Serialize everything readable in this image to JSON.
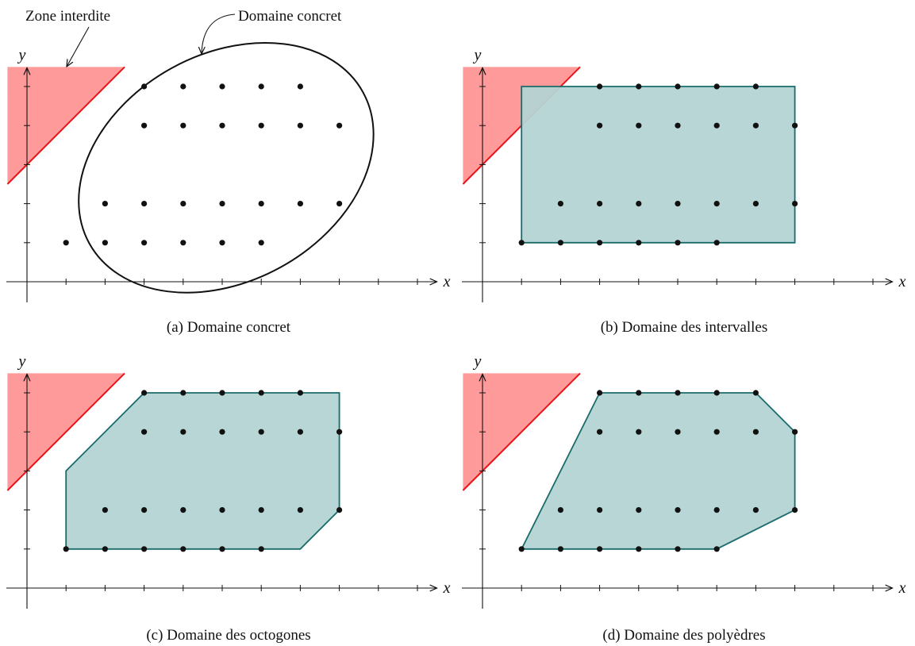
{
  "colors": {
    "forbidden_fill": "#ff9a9a",
    "forbidden_edge": "#e8151b",
    "domain_fill": "#b4d4d3",
    "domain_edge": "#1a6b6b",
    "point": "#111111",
    "axis": "#111111"
  },
  "annotations": {
    "forbidden_zone": "Zone interdite",
    "concrete_domain": "Domaine concret"
  },
  "points": [
    [
      3,
      5
    ],
    [
      4,
      5
    ],
    [
      5,
      5
    ],
    [
      6,
      5
    ],
    [
      7,
      5
    ],
    [
      3,
      4
    ],
    [
      4,
      4
    ],
    [
      5,
      4
    ],
    [
      6,
      4
    ],
    [
      7,
      4
    ],
    [
      8,
      4
    ],
    [
      2,
      2
    ],
    [
      3,
      2
    ],
    [
      4,
      2
    ],
    [
      5,
      2
    ],
    [
      6,
      2
    ],
    [
      7,
      2
    ],
    [
      8,
      2
    ],
    [
      1,
      1
    ],
    [
      2,
      1
    ],
    [
      3,
      1
    ],
    [
      4,
      1
    ],
    [
      5,
      1
    ],
    [
      6,
      1
    ]
  ],
  "forbidden_zone": [
    [
      -0.5,
      5.5
    ],
    [
      2.5,
      5.5
    ],
    [
      -0.5,
      2.5
    ]
  ],
  "panels": [
    {
      "id": "a",
      "caption": "(a) Domaine concret",
      "x_label": "x",
      "y_label": "y",
      "shape": "ellipse",
      "points": [
        [
          3,
          5
        ],
        [
          4,
          5
        ],
        [
          5,
          5
        ],
        [
          6,
          5
        ],
        [
          7,
          5
        ],
        [
          3,
          4
        ],
        [
          4,
          4
        ],
        [
          5,
          4
        ],
        [
          6,
          4
        ],
        [
          7,
          4
        ],
        [
          8,
          4
        ],
        [
          2,
          2
        ],
        [
          3,
          2
        ],
        [
          4,
          2
        ],
        [
          5,
          2
        ],
        [
          6,
          2
        ],
        [
          7,
          2
        ],
        [
          8,
          2
        ],
        [
          1,
          1
        ],
        [
          2,
          1
        ],
        [
          3,
          1
        ],
        [
          4,
          1
        ],
        [
          5,
          1
        ],
        [
          6,
          1
        ]
      ]
    },
    {
      "id": "b",
      "caption": "(b) Domaine des intervalles",
      "x_label": "x",
      "y_label": "y",
      "shape": "polygon",
      "polygon": [
        [
          1,
          1
        ],
        [
          8,
          1
        ],
        [
          8,
          5
        ],
        [
          1,
          5
        ]
      ],
      "points": [
        [
          3,
          5
        ],
        [
          4,
          5
        ],
        [
          5,
          5
        ],
        [
          6,
          5
        ],
        [
          7,
          5
        ],
        [
          3,
          4
        ],
        [
          4,
          4
        ],
        [
          5,
          4
        ],
        [
          6,
          4
        ],
        [
          7,
          4
        ],
        [
          8,
          4
        ],
        [
          2,
          2
        ],
        [
          3,
          2
        ],
        [
          4,
          2
        ],
        [
          5,
          2
        ],
        [
          6,
          2
        ],
        [
          7,
          2
        ],
        [
          8,
          2
        ],
        [
          1,
          1
        ],
        [
          2,
          1
        ],
        [
          3,
          1
        ],
        [
          4,
          1
        ],
        [
          5,
          1
        ],
        [
          6,
          1
        ]
      ]
    },
    {
      "id": "c",
      "caption": "(c) Domaine des octogones",
      "x_label": "x",
      "y_label": "y",
      "shape": "polygon",
      "polygon": [
        [
          1,
          1
        ],
        [
          7,
          1
        ],
        [
          8,
          2
        ],
        [
          8,
          5
        ],
        [
          3,
          5
        ],
        [
          1,
          3
        ]
      ],
      "points": [
        [
          3,
          5
        ],
        [
          4,
          5
        ],
        [
          5,
          5
        ],
        [
          6,
          5
        ],
        [
          7,
          5
        ],
        [
          3,
          4
        ],
        [
          4,
          4
        ],
        [
          5,
          4
        ],
        [
          6,
          4
        ],
        [
          7,
          4
        ],
        [
          8,
          4
        ],
        [
          2,
          2
        ],
        [
          3,
          2
        ],
        [
          4,
          2
        ],
        [
          5,
          2
        ],
        [
          6,
          2
        ],
        [
          7,
          2
        ],
        [
          8,
          2
        ],
        [
          1,
          1
        ],
        [
          2,
          1
        ],
        [
          3,
          1
        ],
        [
          4,
          1
        ],
        [
          5,
          1
        ],
        [
          6,
          1
        ]
      ]
    },
    {
      "id": "d",
      "caption": "(d) Domaine des polyèdres",
      "x_label": "x",
      "y_label": "y",
      "shape": "polygon",
      "polygon": [
        [
          1,
          1
        ],
        [
          6,
          1
        ],
        [
          8,
          2
        ],
        [
          8,
          4
        ],
        [
          7,
          5
        ],
        [
          3,
          5
        ]
      ],
      "points": [
        [
          3,
          5
        ],
        [
          4,
          5
        ],
        [
          5,
          5
        ],
        [
          6,
          5
        ],
        [
          7,
          5
        ],
        [
          3,
          4
        ],
        [
          4,
          4
        ],
        [
          5,
          4
        ],
        [
          6,
          4
        ],
        [
          7,
          4
        ],
        [
          8,
          4
        ],
        [
          2,
          2
        ],
        [
          3,
          2
        ],
        [
          4,
          2
        ],
        [
          5,
          2
        ],
        [
          6,
          2
        ],
        [
          7,
          2
        ],
        [
          8,
          2
        ],
        [
          1,
          1
        ],
        [
          2,
          1
        ],
        [
          3,
          1
        ],
        [
          4,
          1
        ],
        [
          5,
          1
        ],
        [
          6,
          1
        ]
      ]
    }
  ]
}
